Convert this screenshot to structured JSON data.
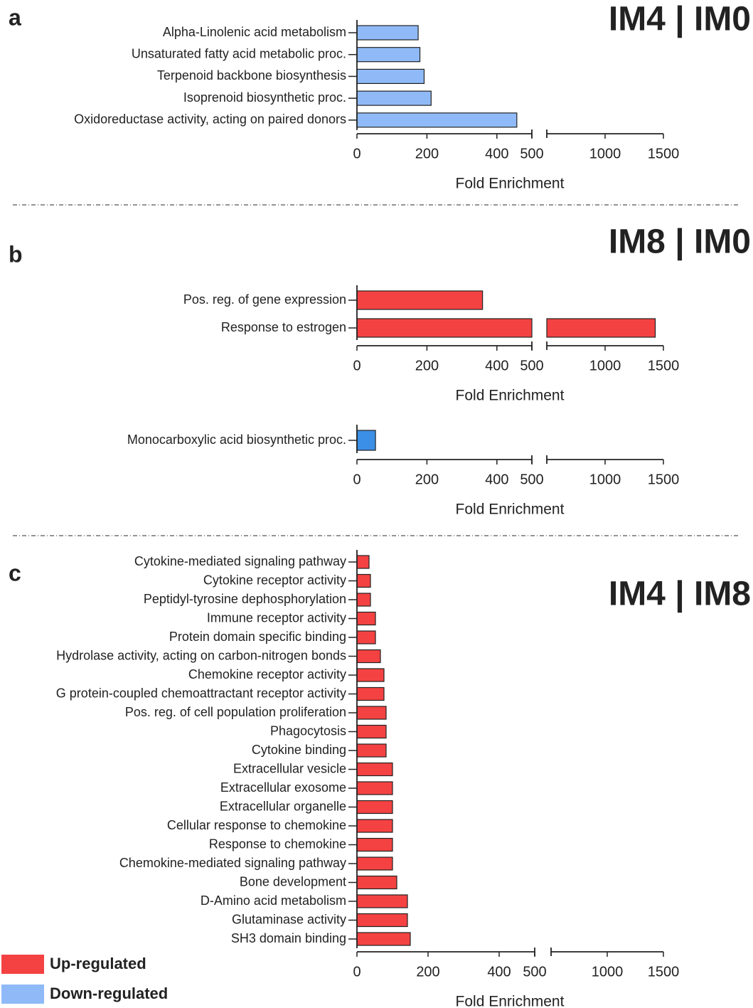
{
  "chart_data": [
    {
      "type": "bar",
      "panel": "a",
      "title": "IM4 | IM0",
      "categories": [
        "Alpha-Linolenic acid metabolism",
        "Unsaturated fatty acid metabolic proc.",
        "Terpenoid backbone biosynthesis",
        "Isoprenoid biosynthetic proc.",
        "Oxidoreductase activity, acting on paired donors"
      ],
      "values": [
        175,
        180,
        192,
        212,
        457
      ],
      "color": "#8fbaf7",
      "x_label": "Fold Enrichment",
      "xsegments": [
        {
          "xlim": [
            0,
            500
          ],
          "xticks": [
            0,
            200,
            400
          ]
        },
        {
          "xlim": [
            500,
            1500
          ],
          "xticks": [
            500,
            1000,
            1500
          ]
        }
      ]
    },
    {
      "type": "bar",
      "panel": "b",
      "title": "IM8 | IM0",
      "categories": [
        "Pos. reg. of gene expression",
        "Response to estrogen"
      ],
      "values": [
        359,
        1430
      ],
      "color": "#f44242",
      "x_label": "Fold Enrichment",
      "xsegments": [
        {
          "xlim": [
            0,
            500
          ],
          "xticks": [
            0,
            200,
            400
          ]
        },
        {
          "xlim": [
            500,
            1500
          ],
          "xticks": [
            500,
            1000,
            1500
          ]
        }
      ]
    },
    {
      "type": "bar",
      "categories": [
        "Monocarboxylic acid biosynthetic proc."
      ],
      "values": [
        53
      ],
      "color": "#3c8fe6",
      "x_label": "Fold Enrichment",
      "xsegments": [
        {
          "xlim": [
            0,
            500
          ],
          "xticks": [
            0,
            200,
            400
          ]
        },
        {
          "xlim": [
            500,
            1500
          ],
          "xticks": [
            500,
            1000,
            1500
          ]
        }
      ]
    },
    {
      "type": "bar",
      "panel": "c",
      "title": "IM4 | IM8",
      "categories": [
        "Cytokine-mediated signaling pathway",
        "Cytokine receptor activity",
        "Peptidyl-tyrosine dephosphorylation",
        "Immune receptor activity",
        "Protein domain specific binding",
        "Hydrolase activity, acting on carbon-nitrogen bonds",
        "Chemokine receptor activity",
        "G protein-coupled chemoattractant receptor activity",
        "Pos. reg. of cell population proliferation",
        "Phagocytosis",
        "Cytokine binding",
        "Extracellular vesicle",
        "Extracellular exosome",
        "Extracellular organelle",
        "Cellular response to chemokine",
        "Response to chemokine",
        "Chemokine-mediated signaling pathway",
        "Bone development",
        "D-Amino acid metabolism",
        "Glutaminase activity",
        "SH3 domain binding"
      ],
      "values": [
        34,
        38,
        38,
        52,
        52,
        66,
        76,
        76,
        82,
        82,
        82,
        100,
        100,
        100,
        100,
        100,
        100,
        112,
        142,
        142,
        150
      ],
      "color": "#f44242",
      "x_label": "Fold Enrichment",
      "xsegments": [
        {
          "xlim": [
            0,
            500
          ],
          "xticks": [
            0,
            200,
            400
          ]
        },
        {
          "xlim": [
            500,
            1500
          ],
          "xticks": [
            500,
            1000,
            1500
          ]
        }
      ]
    }
  ],
  "legend": [
    {
      "name": "Up-regulated",
      "color": "#f44242"
    },
    {
      "name": "Down-regulated",
      "color": "#8fbaf7"
    }
  ]
}
